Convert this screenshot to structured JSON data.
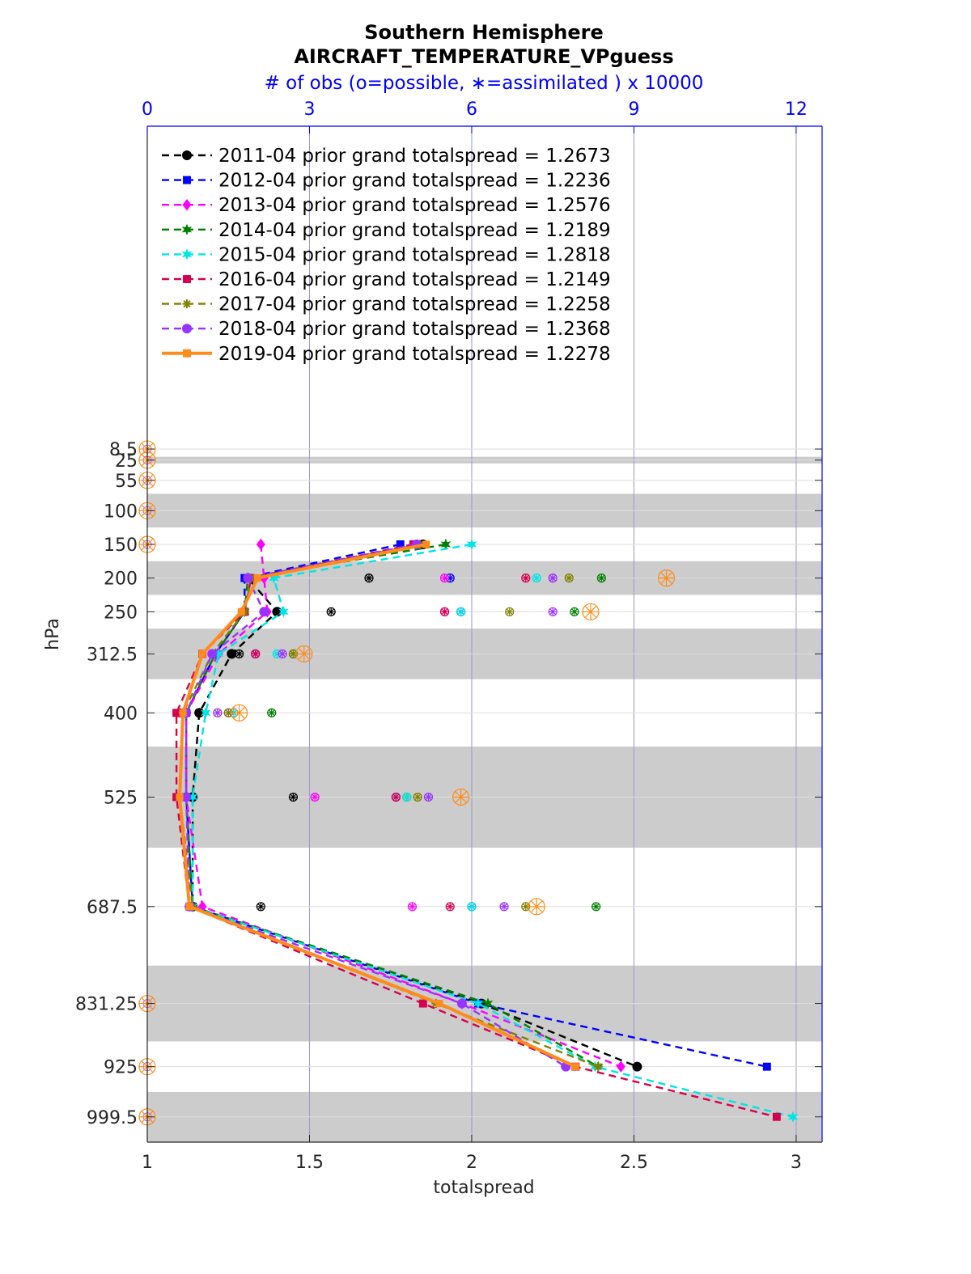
{
  "chart_data": {
    "type": "line",
    "title": "Southern Hemisphere",
    "subtitle": "AIRCRAFT_TEMPERATURE_VPguess",
    "top_axis_label": "# of obs (o=possible, ∗=assimilated ) x 10000",
    "xlabel": "totalspread",
    "ylabel": "hPa",
    "xlim": [
      1,
      3.08
    ],
    "x_ticks": [
      "1",
      "1.5",
      "2",
      "2.5",
      "3"
    ],
    "top_lim": [
      0,
      12.48
    ],
    "top_ticks": [
      "0",
      "3",
      "6",
      "9",
      "12"
    ],
    "y_levels": [
      8.5,
      25,
      55,
      100,
      150,
      200,
      250,
      312.5,
      400,
      525,
      687.5,
      831.25,
      925,
      999.5
    ],
    "y_labels": [
      "8.5",
      "25",
      "55",
      "100",
      "150",
      "200",
      "250",
      "312.5",
      "400",
      "525",
      "687.5",
      "831.25",
      "925",
      "999.5"
    ],
    "shaded_bands": [
      [
        20,
        30
      ],
      [
        75,
        125
      ],
      [
        175,
        225
      ],
      [
        275,
        350
      ],
      [
        450,
        600
      ],
      [
        775,
        887.5
      ],
      [
        962.5,
        1037
      ]
    ],
    "ylim": [
      0,
      1037
    ],
    "y_reversed": true,
    "grid": true,
    "legend_position": "top-left",
    "series": [
      {
        "name": "2011-04 prior grand totalspread = 1.2673",
        "color": "#000000",
        "marker": "circle",
        "levels": [
          150,
          200,
          250,
          312.5,
          400,
          525,
          687.5,
          831.25,
          925
        ],
        "values": [
          1.85,
          1.31,
          1.4,
          1.26,
          1.16,
          1.14,
          1.14,
          2.03,
          2.51
        ],
        "obs_assim": [
          null,
          4.1,
          3.4,
          1.7,
          0.7,
          2.7,
          2.1,
          null,
          null
        ]
      },
      {
        "name": "2012-04 prior grand totalspread = 1.2236",
        "color": "#0000ff",
        "marker": "square",
        "levels": [
          150,
          200,
          250,
          312.5,
          400,
          525,
          687.5,
          831.25,
          925
        ],
        "values": [
          1.78,
          1.3,
          1.3,
          1.21,
          1.12,
          1.12,
          1.14,
          2.02,
          2.91
        ],
        "obs_assim": [
          null,
          5.6,
          5.8,
          2.0,
          1.6,
          4.6,
          6.0,
          null,
          null
        ]
      },
      {
        "name": "2013-04 prior grand totalspread = 1.2576",
        "color": "#ff00ff",
        "marker": "diamond",
        "levels": [
          150,
          200,
          250,
          312.5,
          400,
          525,
          687.5,
          831.25,
          925
        ],
        "values": [
          1.35,
          1.36,
          1.37,
          1.22,
          1.12,
          1.12,
          1.17,
          1.97,
          2.46
        ],
        "obs_assim": [
          null,
          5.5,
          5.5,
          2.0,
          1.5,
          3.1,
          4.9,
          null,
          null
        ]
      },
      {
        "name": "2014-04 prior grand totalspread = 1.2189",
        "color": "#008000",
        "marker": "hexagram",
        "levels": [
          150,
          200,
          250,
          312.5,
          400,
          525,
          687.5,
          831.25,
          925
        ],
        "values": [
          1.92,
          1.31,
          1.3,
          1.21,
          1.12,
          1.12,
          1.14,
          2.05,
          2.39
        ],
        "obs_assim": [
          null,
          8.4,
          7.9,
          2.7,
          2.3,
          4.8,
          8.3,
          null,
          null
        ]
      },
      {
        "name": "2015-04 prior grand totalspread = 1.2818",
        "color": "#00e5e5",
        "marker": "hexagram",
        "levels": [
          150,
          200,
          250,
          312.5,
          400,
          525,
          687.5,
          831.25,
          925,
          999.5
        ],
        "values": [
          2.0,
          1.39,
          1.42,
          1.22,
          1.18,
          1.14,
          1.14,
          2.02,
          2.38,
          2.99
        ],
        "obs_assim": [
          null,
          7.2,
          5.8,
          2.4,
          1.6,
          4.8,
          6.0,
          null,
          null,
          null
        ]
      },
      {
        "name": "2016-04 prior grand totalspread = 1.2149",
        "color": "#d6004f",
        "marker": "square",
        "levels": [
          150,
          200,
          250,
          312.5,
          400,
          525,
          687.5,
          831.25,
          925,
          999.5
        ],
        "values": [
          1.82,
          1.32,
          1.3,
          1.17,
          1.09,
          1.09,
          1.13,
          1.85,
          2.32,
          2.94
        ],
        "obs_assim": [
          null,
          7.0,
          5.5,
          2.0,
          0.6,
          4.6,
          5.6,
          null,
          null,
          null
        ]
      },
      {
        "name": "2017-04 prior grand totalspread = 1.2258",
        "color": "#808000",
        "marker": "asterisk",
        "levels": [
          150,
          200,
          250,
          312.5,
          400,
          525,
          687.5,
          831.25,
          925
        ],
        "values": [
          1.84,
          1.32,
          1.3,
          1.2,
          1.11,
          1.1,
          1.14,
          1.89,
          2.39
        ],
        "obs_assim": [
          null,
          7.8,
          6.7,
          2.7,
          1.5,
          5.0,
          7.0,
          null,
          null
        ]
      },
      {
        "name": "2018-04 prior grand totalspread = 1.2368",
        "color": "#9933ff",
        "marker": "circle",
        "levels": [
          150,
          200,
          250,
          312.5,
          400,
          525,
          687.5,
          831.25,
          925
        ],
        "values": [
          1.83,
          1.31,
          1.36,
          1.2,
          1.12,
          1.12,
          1.13,
          1.97,
          2.29
        ],
        "obs_assim": [
          null,
          7.5,
          7.5,
          2.5,
          1.3,
          5.2,
          6.6,
          null,
          null
        ]
      },
      {
        "name": "2019-04 prior grand totalspread = 1.2278",
        "color": "#ff8c1a",
        "marker": "square",
        "bold": true,
        "levels": [
          150,
          200,
          250,
          312.5,
          400,
          525,
          687.5,
          831.25,
          925
        ],
        "values": [
          1.86,
          1.34,
          1.29,
          1.17,
          1.11,
          1.1,
          1.13,
          1.9,
          2.32
        ],
        "obs_assim": [
          null,
          9.6,
          8.2,
          2.9,
          1.7,
          5.8,
          7.2,
          null,
          null
        ],
        "obs_possible_big": [
          null,
          9.6,
          8.2,
          2.9,
          1.7,
          5.8,
          7.2,
          null,
          null
        ],
        "obs_zero_levels": [
          8.5,
          25,
          55,
          100,
          150,
          831.25,
          925,
          999.5
        ]
      }
    ]
  }
}
